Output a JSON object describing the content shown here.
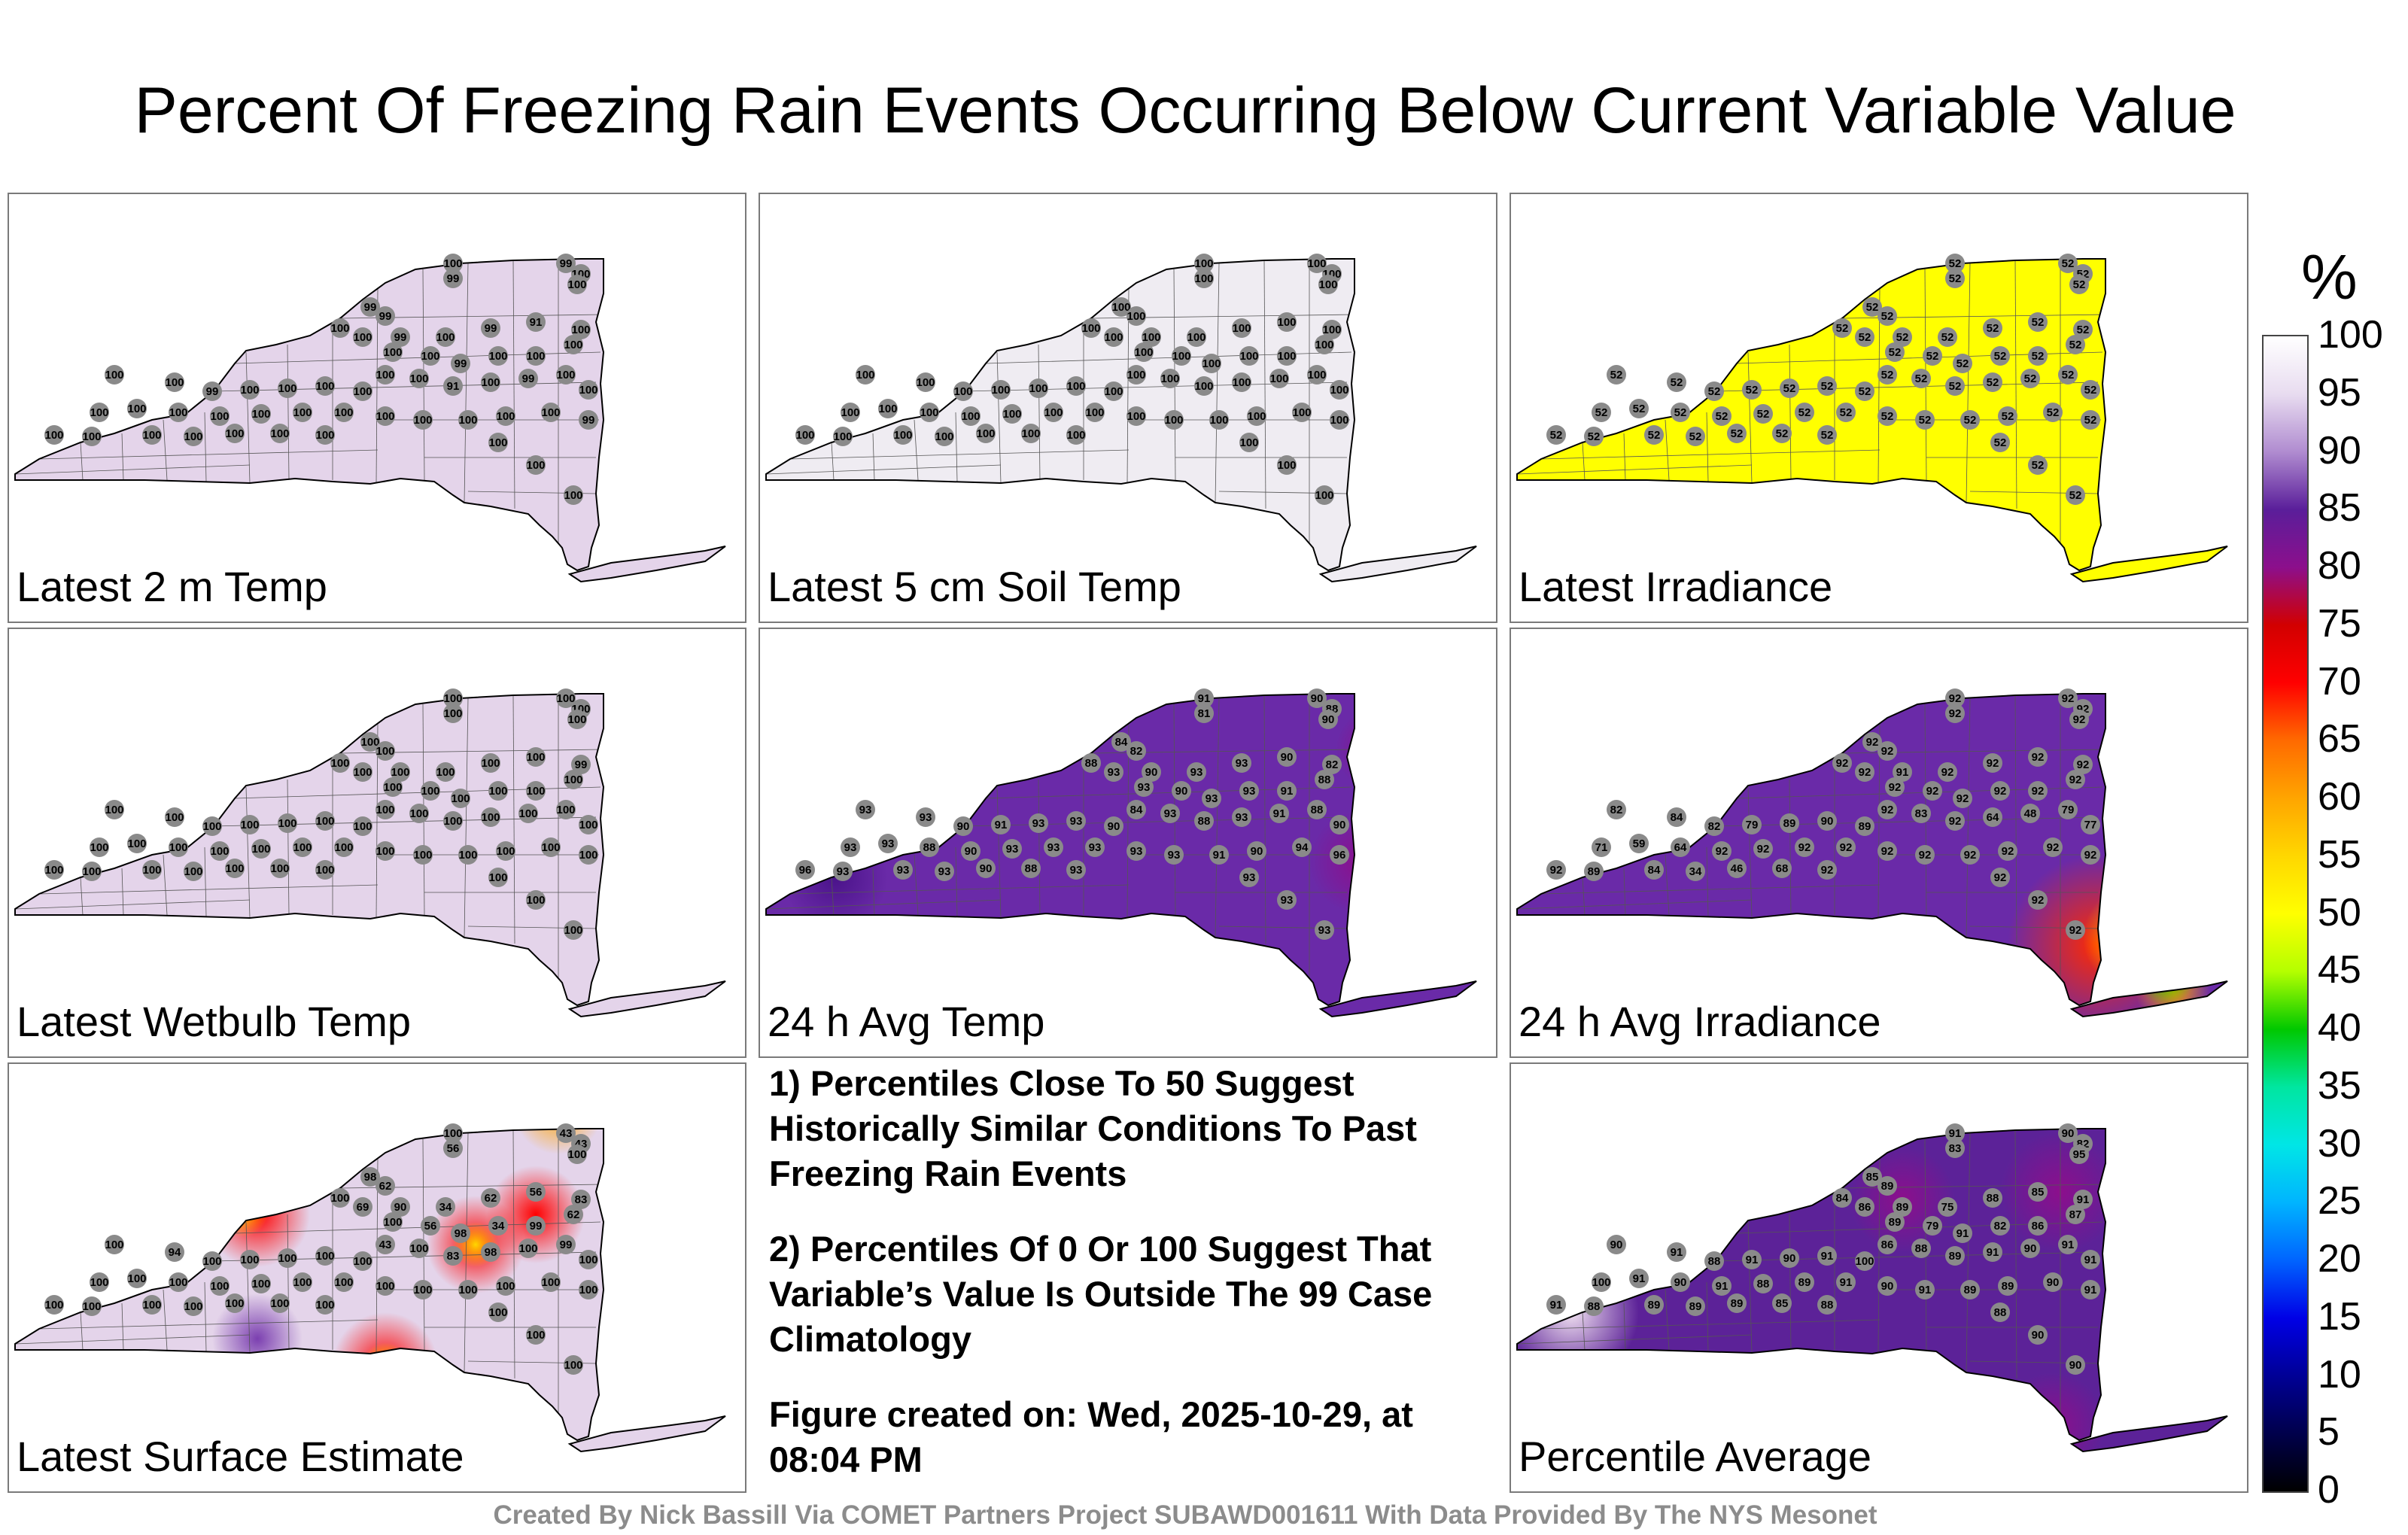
{
  "title": "Percent Of Freezing Rain Events Occurring Below Current Variable Value",
  "panels": [
    {
      "label": "Latest 2 m Temp",
      "fill": "#e4d4ea",
      "values": [
        100,
        99,
        99,
        100,
        100,
        99,
        99,
        100,
        100,
        99,
        100,
        99,
        91,
        100,
        100,
        100,
        99,
        100,
        100,
        100,
        100,
        100,
        91,
        100,
        99,
        100,
        100,
        100,
        100,
        99,
        100,
        100,
        100,
        100,
        100,
        100,
        100,
        100,
        100,
        100,
        100,
        100,
        100,
        100,
        100,
        100,
        99,
        100,
        100,
        100,
        100,
        100,
        100,
        100,
        100,
        100,
        100
      ]
    },
    {
      "label": "Latest 5 cm Soil Temp",
      "fill": "#efecf2",
      "values": [
        100,
        100,
        100,
        100,
        100,
        100,
        100,
        100,
        100,
        100,
        100,
        100,
        100,
        100,
        100,
        100,
        100,
        100,
        100,
        100,
        100,
        100,
        100,
        100,
        100,
        100,
        100,
        100,
        100,
        100,
        100,
        100,
        100,
        100,
        100,
        100,
        100,
        100,
        100,
        100,
        100,
        100,
        100,
        100,
        100,
        100,
        100,
        100,
        100,
        100,
        100,
        100,
        100,
        100,
        100,
        100,
        100
      ]
    },
    {
      "label": "Latest Irradiance",
      "fill": "#ffff00",
      "values": [
        52,
        52,
        52,
        52,
        52,
        52,
        52,
        52,
        52,
        52,
        52,
        52,
        52,
        52,
        52,
        52,
        52,
        52,
        52,
        52,
        52,
        52,
        52,
        52,
        52,
        52,
        52,
        52,
        52,
        52,
        52,
        52,
        52,
        52,
        52,
        52,
        52,
        52,
        52,
        52,
        52,
        52,
        52,
        52,
        52,
        52,
        52,
        52,
        52,
        52,
        52,
        52,
        52,
        52,
        52,
        52,
        52
      ]
    },
    {
      "label": "Latest Wetbulb Temp",
      "fill": "#e4d4ea",
      "values": [
        100,
        100,
        100,
        100,
        100,
        100,
        100,
        100,
        100,
        100,
        100,
        100,
        100,
        99,
        100,
        100,
        100,
        100,
        100,
        100,
        100,
        100,
        100,
        100,
        100,
        100,
        100,
        100,
        100,
        100,
        100,
        100,
        100,
        100,
        100,
        100,
        100,
        100,
        100,
        100,
        100,
        100,
        100,
        100,
        100,
        100,
        100,
        100,
        100,
        100,
        100,
        100,
        100,
        100,
        100,
        100,
        100
      ]
    },
    {
      "label": "24 h Avg Temp",
      "fill": "#6a2aa8",
      "values": [
        91,
        81,
        90,
        88,
        90,
        84,
        82,
        88,
        93,
        90,
        93,
        93,
        90,
        82,
        93,
        90,
        93,
        93,
        91,
        88,
        84,
        93,
        88,
        93,
        91,
        88,
        90,
        93,
        93,
        90,
        91,
        93,
        93,
        90,
        93,
        93,
        88,
        90,
        93,
        93,
        93,
        93,
        93,
        91,
        90,
        94,
        96,
        96,
        93,
        93,
        93,
        90,
        88,
        93,
        93,
        93,
        93
      ]
    },
    {
      "label": "24 h Avg Irradiance",
      "fill": "#6a2aa8",
      "values": [
        92,
        92,
        92,
        92,
        92,
        92,
        92,
        92,
        92,
        91,
        92,
        92,
        92,
        92,
        92,
        92,
        92,
        92,
        92,
        92,
        92,
        83,
        92,
        64,
        48,
        79,
        77,
        82,
        84,
        82,
        79,
        89,
        90,
        89,
        71,
        59,
        64,
        92,
        92,
        92,
        92,
        92,
        92,
        92,
        92,
        92,
        92,
        92,
        89,
        84,
        34,
        46,
        68,
        92,
        92,
        92,
        92
      ]
    },
    {
      "label": "Latest Surface Estimate",
      "fill": "#e4d4ea",
      "values": [
        100,
        56,
        43,
        43,
        100,
        98,
        62,
        100,
        69,
        90,
        34,
        62,
        56,
        83,
        100,
        56,
        98,
        34,
        99,
        62,
        43,
        100,
        83,
        98,
        100,
        99,
        100,
        100,
        94,
        100,
        100,
        100,
        100,
        100,
        100,
        100,
        100,
        100,
        100,
        100,
        100,
        100,
        100,
        100,
        100,
        100,
        100,
        100,
        100,
        100,
        100,
        100,
        100,
        100,
        100,
        100,
        100
      ]
    },
    {
      "label": "Percentile Average",
      "fill": "#5c2298",
      "values": [
        91,
        83,
        90,
        82,
        95,
        85,
        89,
        84,
        86,
        89,
        75,
        88,
        85,
        91,
        89,
        79,
        91,
        82,
        86,
        87,
        86,
        88,
        89,
        91,
        90,
        91,
        91,
        90,
        91,
        88,
        91,
        90,
        91,
        100,
        100,
        91,
        90,
        91,
        88,
        89,
        91,
        90,
        91,
        89,
        89,
        90,
        91,
        91,
        88,
        89,
        89,
        89,
        85,
        88,
        88,
        90,
        90
      ]
    }
  ],
  "notes": [
    "1) Percentiles Close To 50 Suggest Historically Similar Conditions To Past Freezing Rain Events",
    "2) Percentiles Of 0 Or 100 Suggest That Variable’s Value Is Outside The 99 Case Climatology",
    "Figure created on: Wed, 2025-10-29, at 08:04 PM"
  ],
  "footer": "Created By Nick Bassill Via COMET Partners Project SUBAWD001611 With Data Provided By The NYS Mesonet",
  "colorbar": {
    "unit": "%",
    "ticks": [
      "100",
      "95",
      "90",
      "85",
      "80",
      "75",
      "70",
      "65",
      "60",
      "55",
      "50",
      "45",
      "40",
      "35",
      "30",
      "25",
      "20",
      "15",
      "10",
      "5",
      "0"
    ],
    "colors": [
      "#ffffff",
      "#e8dcf0",
      "#b08cd0",
      "#5a1e9a",
      "#8c0f8c",
      "#d20000",
      "#ff0000",
      "#ff6a00",
      "#ffa500",
      "#ffd700",
      "#ffff00",
      "#b4ff00",
      "#00c800",
      "#00e6a0",
      "#00e6e6",
      "#00b4ff",
      "#0064ff",
      "#0000e6",
      "#000096",
      "#00004b",
      "#000000"
    ]
  }
}
